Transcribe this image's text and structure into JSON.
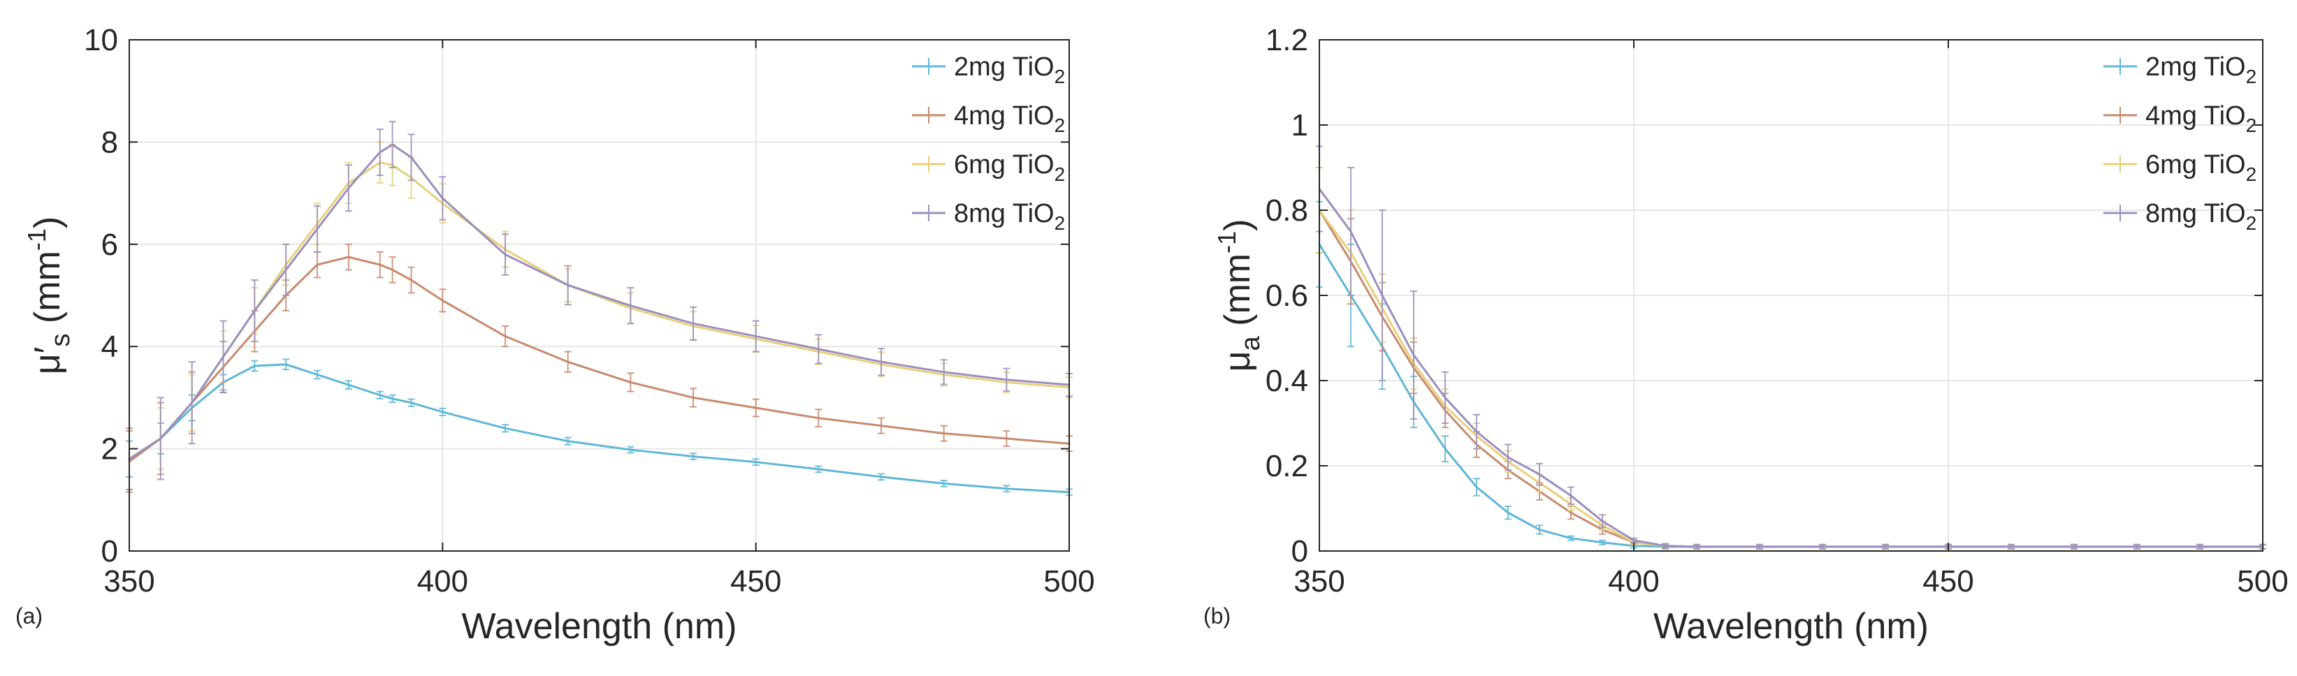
{
  "chart_data": [
    {
      "type": "line",
      "panel_label": "(a)",
      "xlabel": "Wavelength (nm)",
      "ylabel": {
        "symbol": "μ",
        "prime": "′",
        "subscript": "s",
        "unit": "(mm",
        "exp": "-1",
        "close": ")"
      },
      "xlim": [
        350,
        500
      ],
      "ylim": [
        0,
        10
      ],
      "xticks": [
        350,
        400,
        450,
        500
      ],
      "yticks": [
        0,
        2,
        4,
        6,
        8,
        10
      ],
      "grid": true,
      "error_bars": true,
      "legend_position": "top-right",
      "x": [
        350,
        355,
        360,
        365,
        370,
        375,
        380,
        385,
        390,
        392,
        395,
        400,
        410,
        420,
        430,
        440,
        450,
        460,
        470,
        480,
        490,
        500
      ],
      "series": [
        {
          "name": "2mg TiO",
          "sub": "2",
          "color": "#5fb7d6",
          "values": [
            1.8,
            2.2,
            2.8,
            3.3,
            3.62,
            3.65,
            3.45,
            3.25,
            3.05,
            2.98,
            2.9,
            2.72,
            2.4,
            2.15,
            1.98,
            1.85,
            1.74,
            1.6,
            1.45,
            1.32,
            1.22,
            1.15
          ],
          "errors": [
            0.35,
            0.3,
            0.25,
            0.15,
            0.1,
            0.1,
            0.08,
            0.08,
            0.07,
            0.07,
            0.07,
            0.07,
            0.07,
            0.07,
            0.06,
            0.06,
            0.06,
            0.06,
            0.06,
            0.06,
            0.06,
            0.06
          ]
        },
        {
          "name": "4mg TiO",
          "sub": "2",
          "color": "#c88a6e",
          "values": [
            1.75,
            2.2,
            2.9,
            3.6,
            4.3,
            5.0,
            5.6,
            5.75,
            5.6,
            5.5,
            5.3,
            4.9,
            4.2,
            3.7,
            3.3,
            3.0,
            2.8,
            2.6,
            2.45,
            2.3,
            2.2,
            2.1
          ],
          "errors": [
            0.6,
            0.7,
            0.6,
            0.5,
            0.4,
            0.3,
            0.25,
            0.25,
            0.25,
            0.25,
            0.25,
            0.22,
            0.2,
            0.2,
            0.18,
            0.18,
            0.17,
            0.17,
            0.15,
            0.15,
            0.15,
            0.15
          ]
        },
        {
          "name": "6mg TiO",
          "sub": "2",
          "color": "#e8cf7a",
          "values": [
            1.8,
            2.2,
            2.9,
            3.8,
            4.7,
            5.6,
            6.4,
            7.2,
            7.6,
            7.55,
            7.3,
            6.8,
            5.9,
            5.2,
            4.75,
            4.4,
            4.15,
            3.9,
            3.65,
            3.45,
            3.3,
            3.2
          ],
          "errors": [
            0.6,
            0.6,
            0.55,
            0.5,
            0.45,
            0.4,
            0.4,
            0.4,
            0.4,
            0.4,
            0.4,
            0.38,
            0.35,
            0.32,
            0.3,
            0.28,
            0.26,
            0.25,
            0.24,
            0.22,
            0.2,
            0.2
          ]
        },
        {
          "name": "8mg TiO",
          "sub": "2",
          "color": "#9a8fbd",
          "values": [
            1.8,
            2.2,
            2.9,
            3.8,
            4.7,
            5.5,
            6.3,
            7.1,
            7.8,
            7.95,
            7.7,
            6.9,
            5.8,
            5.2,
            4.8,
            4.45,
            4.2,
            3.95,
            3.7,
            3.5,
            3.35,
            3.25
          ],
          "errors": [
            0.6,
            0.8,
            0.8,
            0.7,
            0.6,
            0.5,
            0.45,
            0.45,
            0.45,
            0.45,
            0.45,
            0.42,
            0.4,
            0.38,
            0.35,
            0.32,
            0.3,
            0.28,
            0.26,
            0.24,
            0.22,
            0.22
          ]
        }
      ]
    },
    {
      "type": "line",
      "panel_label": "(b)",
      "xlabel": "Wavelength (nm)",
      "ylabel": {
        "symbol": "μ",
        "prime": "",
        "subscript": "a",
        "unit": "(mm",
        "exp": "-1",
        "close": ")"
      },
      "xlim": [
        350,
        500
      ],
      "ylim": [
        0,
        1.2
      ],
      "xticks": [
        350,
        400,
        450,
        500
      ],
      "yticks": [
        0,
        0.2,
        0.4,
        0.6,
        0.8,
        1,
        1.2
      ],
      "grid": true,
      "error_bars": true,
      "legend_position": "top-right",
      "x": [
        350,
        355,
        360,
        365,
        370,
        375,
        380,
        385,
        390,
        395,
        400,
        405,
        410,
        420,
        430,
        440,
        450,
        460,
        470,
        480,
        490,
        500
      ],
      "series": [
        {
          "name": "2mg TiO",
          "sub": "2",
          "color": "#5fb7d6",
          "values": [
            0.72,
            0.6,
            0.48,
            0.35,
            0.24,
            0.15,
            0.09,
            0.05,
            0.03,
            0.02,
            0.012,
            0.01,
            0.01,
            0.01,
            0.01,
            0.01,
            0.01,
            0.01,
            0.01,
            0.01,
            0.01,
            0.01
          ],
          "errors": [
            0.1,
            0.12,
            0.1,
            0.06,
            0.03,
            0.02,
            0.015,
            0.01,
            0.005,
            0.005,
            0.005,
            0.005,
            0.005,
            0.005,
            0.005,
            0.005,
            0.005,
            0.005,
            0.005,
            0.005,
            0.005,
            0.005
          ]
        },
        {
          "name": "4mg TiO",
          "sub": "2",
          "color": "#c88a6e",
          "values": [
            0.8,
            0.68,
            0.55,
            0.43,
            0.33,
            0.25,
            0.19,
            0.14,
            0.09,
            0.05,
            0.02,
            0.012,
            0.01,
            0.01,
            0.01,
            0.01,
            0.01,
            0.01,
            0.01,
            0.01,
            0.01,
            0.01
          ],
          "errors": [
            0.1,
            0.1,
            0.08,
            0.06,
            0.04,
            0.03,
            0.02,
            0.02,
            0.015,
            0.01,
            0.005,
            0.005,
            0.005,
            0.005,
            0.005,
            0.005,
            0.005,
            0.005,
            0.005,
            0.005,
            0.005,
            0.005
          ]
        },
        {
          "name": "6mg TiO",
          "sub": "2",
          "color": "#e8cf7a",
          "values": [
            0.8,
            0.7,
            0.57,
            0.44,
            0.34,
            0.27,
            0.21,
            0.16,
            0.11,
            0.06,
            0.02,
            0.012,
            0.01,
            0.01,
            0.01,
            0.01,
            0.01,
            0.01,
            0.01,
            0.01,
            0.01,
            0.01
          ],
          "errors": [
            0.1,
            0.1,
            0.08,
            0.06,
            0.04,
            0.03,
            0.025,
            0.02,
            0.015,
            0.01,
            0.005,
            0.005,
            0.005,
            0.005,
            0.005,
            0.005,
            0.005,
            0.005,
            0.005,
            0.005,
            0.005,
            0.005
          ]
        },
        {
          "name": "8mg TiO",
          "sub": "2",
          "color": "#9a8fbd",
          "values": [
            0.85,
            0.75,
            0.6,
            0.46,
            0.36,
            0.28,
            0.22,
            0.18,
            0.13,
            0.07,
            0.025,
            0.012,
            0.01,
            0.01,
            0.01,
            0.01,
            0.01,
            0.01,
            0.01,
            0.01,
            0.01,
            0.01
          ],
          "errors": [
            0.1,
            0.15,
            0.2,
            0.15,
            0.06,
            0.04,
            0.03,
            0.025,
            0.02,
            0.015,
            0.005,
            0.005,
            0.005,
            0.005,
            0.005,
            0.005,
            0.005,
            0.005,
            0.005,
            0.005,
            0.005,
            0.005
          ]
        }
      ]
    }
  ]
}
